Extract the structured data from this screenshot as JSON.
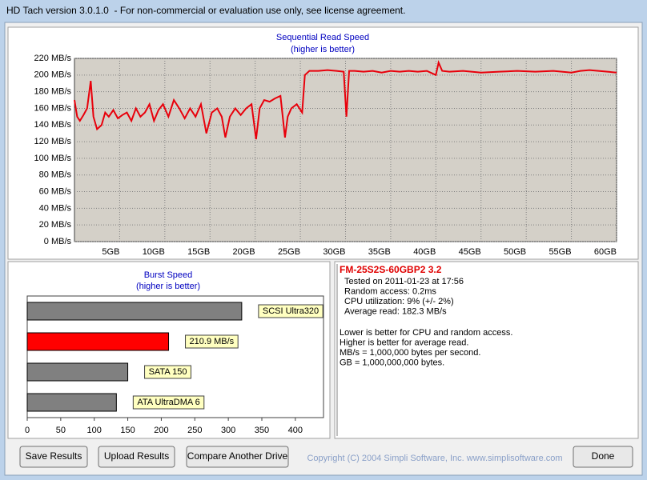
{
  "window": {
    "title": "HD Tach version 3.0.1.0  - For non-commercial or evaluation use only, see license agreement."
  },
  "chart_data": [
    {
      "type": "line",
      "title": "Sequential Read Speed",
      "subtitle": "(higher is better)",
      "x": [
        0,
        0.3,
        0.6,
        1,
        1.4,
        1.8,
        2.1,
        2.5,
        3,
        3.4,
        3.8,
        4.3,
        4.8,
        5.3,
        5.8,
        6.3,
        6.8,
        7.3,
        7.8,
        8.3,
        8.8,
        9.3,
        9.8,
        10.4,
        11,
        11.6,
        12.2,
        12.8,
        13.4,
        14,
        14.6,
        15.2,
        15.8,
        16.3,
        16.7,
        17.2,
        17.8,
        18.4,
        19,
        19.6,
        20.1,
        20.5,
        21,
        21.6,
        22.2,
        22.8,
        23.3,
        23.6,
        24,
        24.6,
        25.2,
        25.5,
        26,
        27,
        28,
        29,
        29.8,
        30.1,
        30.4,
        31,
        32,
        33,
        34,
        35,
        36,
        37,
        38,
        39,
        40,
        40.3,
        40.7,
        41.5,
        43,
        45,
        47,
        49,
        51,
        53,
        55,
        56,
        57,
        58,
        59,
        60
      ],
      "series": [
        {
          "color": "#e8000b",
          "values": [
            170,
            150,
            145,
            152,
            160,
            193,
            150,
            135,
            140,
            155,
            150,
            158,
            148,
            152,
            155,
            145,
            160,
            150,
            155,
            165,
            145,
            158,
            165,
            150,
            170,
            160,
            148,
            160,
            150,
            165,
            130,
            155,
            160,
            150,
            125,
            150,
            160,
            152,
            160,
            165,
            123,
            160,
            170,
            168,
            172,
            175,
            125,
            150,
            160,
            165,
            155,
            200,
            205,
            205,
            206,
            205,
            204,
            150,
            205,
            205,
            204,
            205,
            203,
            205,
            204,
            205,
            204,
            205,
            200,
            215,
            205,
            204,
            205,
            203,
            204,
            205,
            204,
            205,
            203,
            205,
            206,
            205,
            204,
            203
          ]
        }
      ],
      "xlim": [
        0,
        60
      ],
      "xticks": [
        {
          "value": 5,
          "label": "5GB"
        },
        {
          "value": 10,
          "label": "10GB"
        },
        {
          "value": 15,
          "label": "15GB"
        },
        {
          "value": 20,
          "label": "20GB"
        },
        {
          "value": 25,
          "label": "25GB"
        },
        {
          "value": 30,
          "label": "30GB"
        },
        {
          "value": 35,
          "label": "35GB"
        },
        {
          "value": 40,
          "label": "40GB"
        },
        {
          "value": 45,
          "label": "45GB"
        },
        {
          "value": 50,
          "label": "50GB"
        },
        {
          "value": 55,
          "label": "55GB"
        },
        {
          "value": 60,
          "label": "60GB"
        }
      ],
      "ylim": [
        0,
        220
      ],
      "yticks": [
        {
          "value": 0,
          "label": "0 MB/s"
        },
        {
          "value": 20,
          "label": "20 MB/s"
        },
        {
          "value": 40,
          "label": "40 MB/s"
        },
        {
          "value": 60,
          "label": "60 MB/s"
        },
        {
          "value": 80,
          "label": "80 MB/s"
        },
        {
          "value": 100,
          "label": "100 MB/s"
        },
        {
          "value": 120,
          "label": "120 MB/s"
        },
        {
          "value": 140,
          "label": "140 MB/s"
        },
        {
          "value": 160,
          "label": "160 MB/s"
        },
        {
          "value": 180,
          "label": "180 MB/s"
        },
        {
          "value": 200,
          "label": "200 MB/s"
        },
        {
          "value": 220,
          "label": "220 MB/s"
        }
      ],
      "grid": true
    },
    {
      "type": "hbar",
      "title": "Burst Speed",
      "subtitle": "(higher is better)",
      "categories": [
        "SCSI Ultra320",
        null,
        "SATA 150",
        "ATA UltraDMA 6"
      ],
      "values": [
        320,
        210.9,
        150,
        133
      ],
      "value_labels": [
        null,
        "210.9 MB/s",
        null,
        null
      ],
      "colors": [
        "#808080",
        "#ff0000",
        "#808080",
        "#808080"
      ],
      "xlim": [
        0,
        442
      ],
      "xticks": [
        0,
        50,
        100,
        150,
        200,
        250,
        300,
        350,
        400
      ]
    }
  ],
  "info": {
    "title": "FM-25S2S-60GBP2 3.2",
    "lines": [
      "Tested on 2011-01-23 at 17:56",
      "Random access: 0.2ms",
      "CPU utilization: 9% (+/- 2%)",
      "Average read: 182.3 MB/s"
    ],
    "notes": [
      "Lower is better for CPU and random access.",
      "Higher is better for average read.",
      "MB/s = 1,000,000 bytes per second.",
      "GB = 1,000,000,000 bytes."
    ]
  },
  "buttons": [
    "Save Results",
    "Upload Results",
    "Compare Another Drive",
    "Done"
  ],
  "copyright": "Copyright (C) 2004 Simpli Software, Inc. www.simplisoftware.com"
}
